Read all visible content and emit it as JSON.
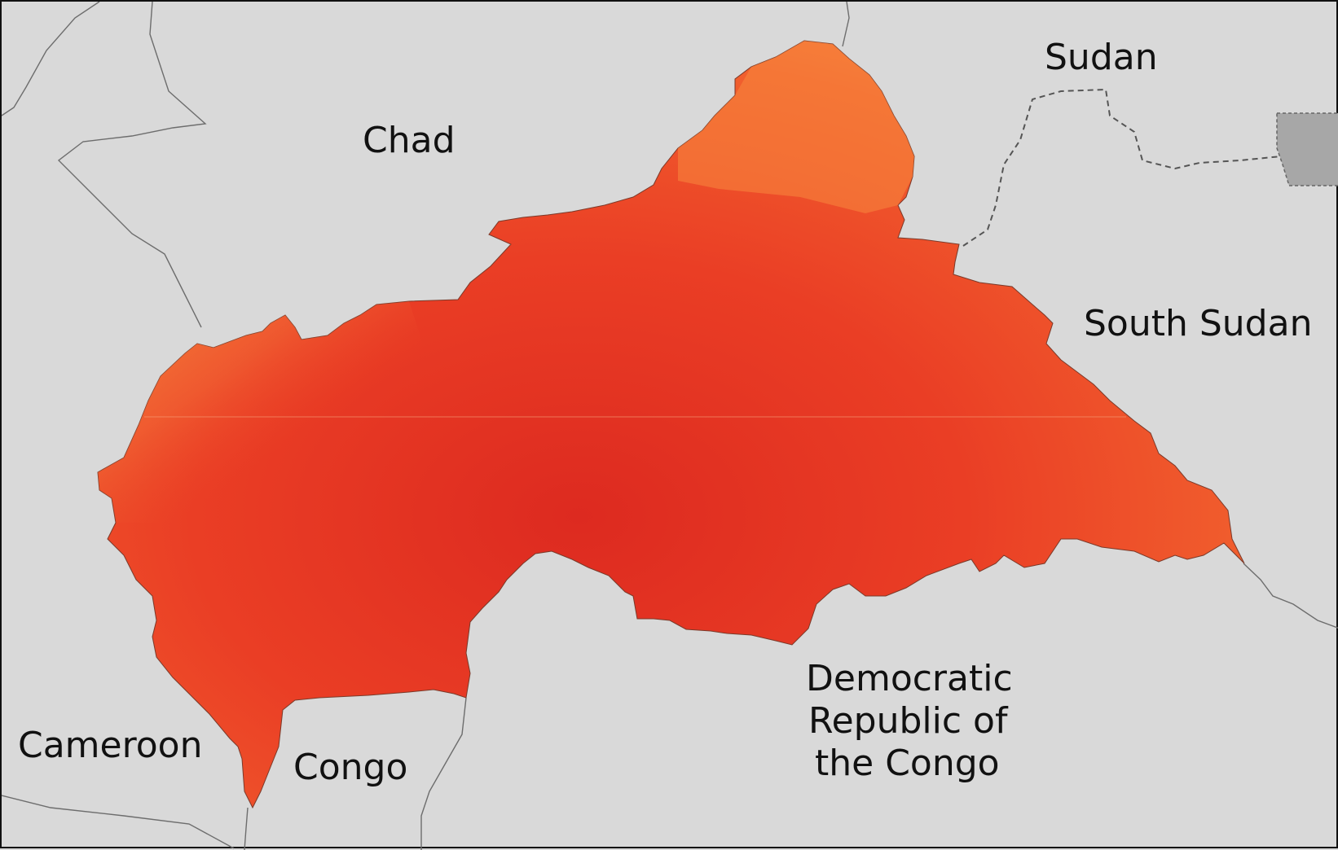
{
  "labels": {
    "chad": "Chad",
    "sudan": "Sudan",
    "south_sudan": "South Sudan",
    "cameroon": "Cameroon",
    "congo": "Congo",
    "drc_line1": "Democratic",
    "drc_line2": "Republic of",
    "drc_line3": "the Congo"
  },
  "colors": {
    "background": "#d9d9d9",
    "highlight_light": "#f7883e",
    "highlight_mid": "#f0542c",
    "highlight_dark": "#d9241f",
    "inset_region": "#a7a7a7",
    "frame": "#111111"
  }
}
